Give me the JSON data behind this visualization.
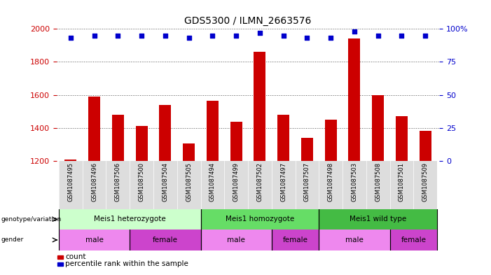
{
  "title": "GDS5300 / ILMN_2663576",
  "samples": [
    "GSM1087495",
    "GSM1087496",
    "GSM1087506",
    "GSM1087500",
    "GSM1087504",
    "GSM1087505",
    "GSM1087494",
    "GSM1087499",
    "GSM1087502",
    "GSM1087497",
    "GSM1087507",
    "GSM1087498",
    "GSM1087503",
    "GSM1087508",
    "GSM1087501",
    "GSM1087509"
  ],
  "counts": [
    1210,
    1590,
    1480,
    1410,
    1540,
    1305,
    1565,
    1435,
    1860,
    1480,
    1340,
    1450,
    1940,
    1600,
    1470,
    1380
  ],
  "percentiles": [
    93,
    95,
    95,
    95,
    95,
    93,
    95,
    95,
    97,
    95,
    93,
    93,
    98,
    95,
    95,
    95
  ],
  "bar_color": "#cc0000",
  "dot_color": "#0000cc",
  "ylim_left": [
    1200,
    2000
  ],
  "ylim_right": [
    0,
    100
  ],
  "yticks_left": [
    1200,
    1400,
    1600,
    1800,
    2000
  ],
  "yticks_right": [
    0,
    25,
    50,
    75,
    100
  ],
  "genotype_groups": [
    {
      "label": "Meis1 heterozygote",
      "start": 0,
      "end": 5,
      "color": "#ccffcc"
    },
    {
      "label": "Meis1 homozygote",
      "start": 6,
      "end": 10,
      "color": "#66dd66"
    },
    {
      "label": "Meis1 wild type",
      "start": 11,
      "end": 15,
      "color": "#44bb44"
    }
  ],
  "gender_groups": [
    {
      "label": "male",
      "start": 0,
      "end": 2,
      "color": "#ee88ee"
    },
    {
      "label": "female",
      "start": 3,
      "end": 5,
      "color": "#dd44dd"
    },
    {
      "label": "male",
      "start": 6,
      "end": 8,
      "color": "#ee88ee"
    },
    {
      "label": "female",
      "start": 9,
      "end": 10,
      "color": "#dd44dd"
    },
    {
      "label": "male",
      "start": 11,
      "end": 13,
      "color": "#ee88ee"
    },
    {
      "label": "female",
      "start": 14,
      "end": 15,
      "color": "#dd44dd"
    }
  ],
  "legend_count_color": "#cc0000",
  "legend_percentile_color": "#0000cc",
  "background_color": "#ffffff",
  "grid_color": "#555555",
  "xticklabel_bg": "#dddddd"
}
